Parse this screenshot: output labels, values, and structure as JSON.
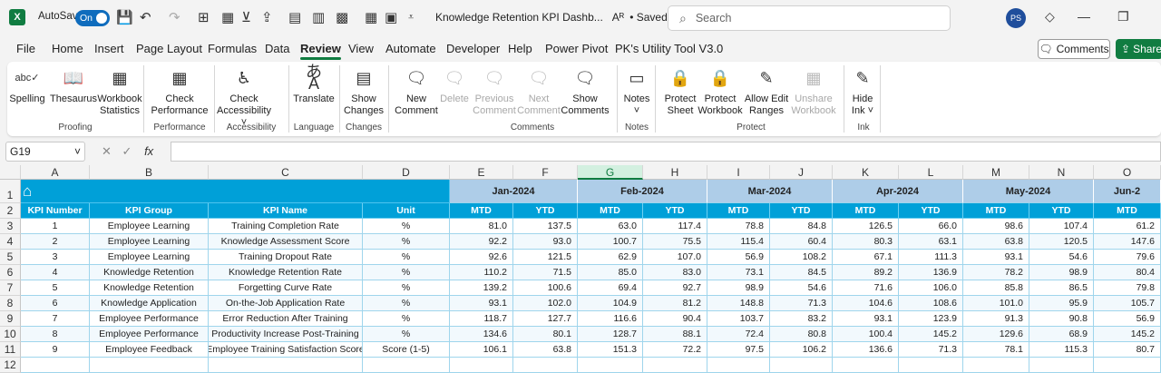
{
  "app": {
    "logo": "X",
    "autosave_label": "AutoSave",
    "toggle": "On",
    "doc_title": "Knowledge Retention KPI Dashb...",
    "saved": "• Saved",
    "search_placeholder": "Search",
    "avatar": "PS"
  },
  "menu": [
    "File",
    "Home",
    "Insert",
    "Page Layout",
    "Formulas",
    "Data",
    "Review",
    "View",
    "Automate",
    "Developer",
    "Help",
    "Power Pivot",
    "PK's Utility Tool V3.0"
  ],
  "comments_btn": "Comments",
  "share_btn": "Share",
  "ribbon": {
    "buttons": [
      {
        "label": "Spelling",
        "icon": "spelling-icon",
        "dis": false
      },
      {
        "label": "Thesaurus",
        "icon": "thesaurus-icon",
        "dis": false
      },
      {
        "label": "Workbook Statistics",
        "icon": "workbook-statistics-icon",
        "dis": false
      },
      {
        "label": "Check Performance",
        "icon": "check-performance-icon",
        "dis": false
      },
      {
        "label": "Check Accessibility ˅",
        "icon": "check-accessibility-icon",
        "dis": false
      },
      {
        "label": "Translate",
        "icon": "translate-icon",
        "dis": false
      },
      {
        "label": "Show Changes",
        "icon": "show-changes-icon",
        "dis": false
      },
      {
        "label": "New Comment",
        "icon": "new-comment-icon",
        "dis": false
      },
      {
        "label": "Delete",
        "icon": "delete-comment-icon",
        "dis": true
      },
      {
        "label": "Previous Comment",
        "icon": "previous-comment-icon",
        "dis": true
      },
      {
        "label": "Next Comment",
        "icon": "next-comment-icon",
        "dis": true
      },
      {
        "label": "Show Comments",
        "icon": "show-comments-icon",
        "dis": false
      },
      {
        "label": "Notes ˅",
        "icon": "notes-icon",
        "dis": false
      },
      {
        "label": "Protect Sheet",
        "icon": "protect-sheet-icon",
        "dis": false
      },
      {
        "label": "Protect Workbook",
        "icon": "protect-workbook-icon",
        "dis": false
      },
      {
        "label": "Allow Edit Ranges",
        "icon": "allow-edit-ranges-icon",
        "dis": false
      },
      {
        "label": "Unshare Workbook",
        "icon": "unshare-workbook-icon",
        "dis": true
      },
      {
        "label": "Hide Ink ˅",
        "icon": "hide-ink-icon",
        "dis": false
      }
    ],
    "groups": [
      "Proofing",
      "Performance",
      "Accessibility",
      "Language",
      "Changes",
      "Comments",
      "Notes",
      "Protect",
      "Ink"
    ]
  },
  "formula_bar": {
    "name_box": "G19",
    "fx": "fx",
    "value": ""
  },
  "columns": [
    "A",
    "B",
    "C",
    "D",
    "E",
    "F",
    "G",
    "H",
    "I",
    "J",
    "K",
    "L",
    "M",
    "N",
    "O"
  ],
  "selected_column": "G",
  "rows": [
    "1",
    "2",
    "3",
    "4",
    "5",
    "6",
    "7",
    "8",
    "9",
    "10",
    "11",
    "12"
  ],
  "table": {
    "home_icon": "home-icon",
    "months": [
      "Jan-2024",
      "Feb-2024",
      "Mar-2024",
      "Apr-2024",
      "May-2024",
      "Jun-2"
    ],
    "headers": [
      "KPI Number",
      "KPI Group",
      "KPI Name",
      "Unit"
    ],
    "sub": [
      "MTD",
      "YTD",
      "MTD",
      "YTD",
      "MTD",
      "YTD",
      "MTD",
      "YTD",
      "MTD",
      "YTD",
      "MTD"
    ],
    "data": [
      [
        "1",
        "Employee Learning",
        "Training Completion Rate",
        "%",
        "81.0",
        "137.5",
        "63.0",
        "117.4",
        "78.8",
        "84.8",
        "126.5",
        "66.0",
        "98.6",
        "107.4",
        "61.2"
      ],
      [
        "2",
        "Employee Learning",
        "Knowledge Assessment Score",
        "%",
        "92.2",
        "93.0",
        "100.7",
        "75.5",
        "115.4",
        "60.4",
        "80.3",
        "63.1",
        "63.8",
        "120.5",
        "147.6"
      ],
      [
        "3",
        "Employee Learning",
        "Training Dropout Rate",
        "%",
        "92.6",
        "121.5",
        "62.9",
        "107.0",
        "56.9",
        "108.2",
        "67.1",
        "111.3",
        "93.1",
        "54.6",
        "79.6"
      ],
      [
        "4",
        "Knowledge Retention",
        "Knowledge Retention Rate",
        "%",
        "110.2",
        "71.5",
        "85.0",
        "83.0",
        "73.1",
        "84.5",
        "89.2",
        "136.9",
        "78.2",
        "98.9",
        "80.4"
      ],
      [
        "5",
        "Knowledge Retention",
        "Forgetting Curve Rate",
        "%",
        "139.2",
        "100.6",
        "69.4",
        "92.7",
        "98.9",
        "54.6",
        "71.6",
        "106.0",
        "85.8",
        "86.5",
        "79.8"
      ],
      [
        "6",
        "Knowledge Application",
        "On-the-Job Application Rate",
        "%",
        "93.1",
        "102.0",
        "104.9",
        "81.2",
        "148.8",
        "71.3",
        "104.6",
        "108.6",
        "101.0",
        "95.9",
        "105.7"
      ],
      [
        "7",
        "Employee Performance",
        "Error Reduction After Training",
        "%",
        "118.7",
        "127.7",
        "116.6",
        "90.4",
        "103.7",
        "83.2",
        "93.1",
        "123.9",
        "91.3",
        "90.8",
        "56.9"
      ],
      [
        "8",
        "Employee Performance",
        "Productivity Increase Post-Training",
        "%",
        "134.6",
        "80.1",
        "128.7",
        "88.1",
        "72.4",
        "80.8",
        "100.4",
        "145.2",
        "129.6",
        "68.9",
        "145.2"
      ],
      [
        "9",
        "Employee Feedback",
        "Employee Training Satisfaction Score",
        "Score (1-5)",
        "106.1",
        "63.8",
        "151.3",
        "72.2",
        "97.5",
        "106.2",
        "136.6",
        "71.3",
        "78.1",
        "115.3",
        "80.7"
      ]
    ]
  }
}
